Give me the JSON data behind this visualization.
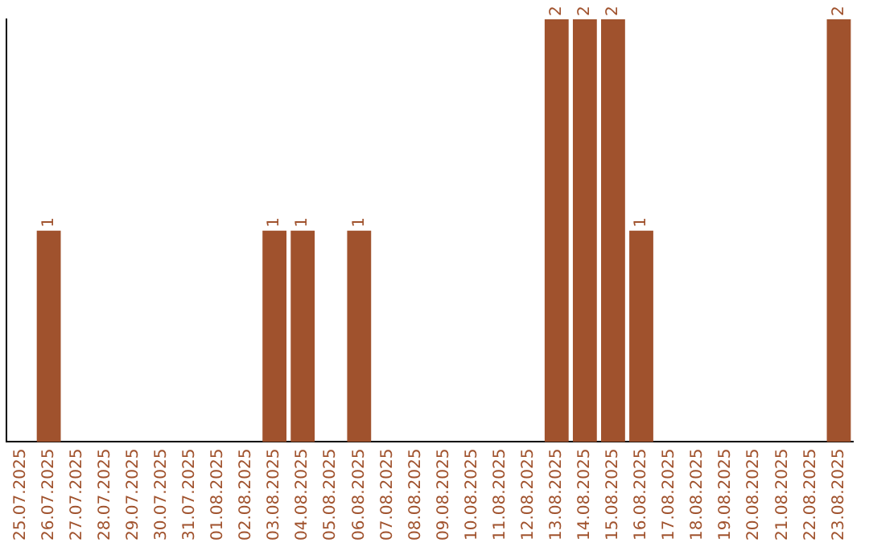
{
  "chart_data": {
    "type": "bar",
    "categories": [
      "25.07.2025",
      "26.07.2025",
      "27.07.2025",
      "28.07.2025",
      "29.07.2025",
      "30.07.2025",
      "31.07.2025",
      "01.08.2025",
      "02.08.2025",
      "03.08.2025",
      "04.08.2025",
      "05.08.2025",
      "06.08.2025",
      "07.08.2025",
      "08.08.2025",
      "09.08.2025",
      "10.08.2025",
      "11.08.2025",
      "12.08.2025",
      "13.08.2025",
      "14.08.2025",
      "15.08.2025",
      "16.08.2025",
      "17.08.2025",
      "18.08.2025",
      "19.08.2025",
      "20.08.2025",
      "21.08.2025",
      "22.08.2025",
      "23.08.2025"
    ],
    "values": [
      0,
      1,
      0,
      0,
      0,
      0,
      0,
      0,
      0,
      1,
      1,
      0,
      1,
      0,
      0,
      0,
      0,
      0,
      0,
      2,
      2,
      2,
      1,
      0,
      0,
      0,
      0,
      0,
      0,
      2
    ],
    "value_labels": [
      null,
      "1",
      null,
      null,
      null,
      null,
      null,
      null,
      null,
      "1",
      "1",
      null,
      "1",
      null,
      null,
      null,
      null,
      null,
      null,
      "2",
      "2",
      "2",
      "1",
      null,
      null,
      null,
      null,
      null,
      null,
      "2"
    ],
    "color": "#a0522d",
    "grid": false,
    "legend": false,
    "tick_labels": "x"
  }
}
